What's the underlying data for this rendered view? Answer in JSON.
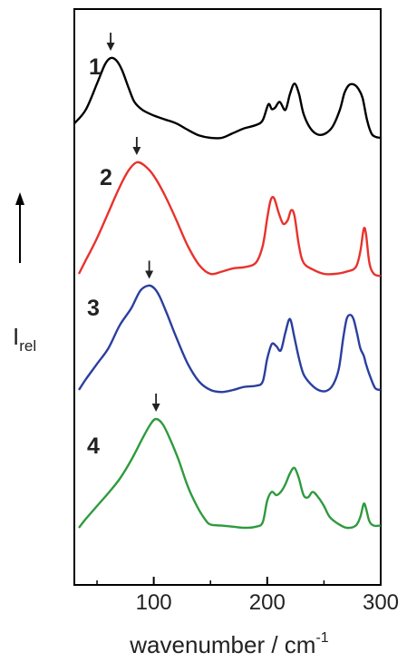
{
  "chart_data": {
    "type": "line",
    "title": "",
    "xlabel": "wavenumber / cm",
    "xlabel_superscript": "-1",
    "ylabel": "I",
    "ylabel_subscript": "rel",
    "xlim": [
      30,
      300
    ],
    "x_ticks": [
      100,
      200,
      300
    ],
    "x_tick_labels": [
      "100",
      "200",
      "300"
    ],
    "y_ticks": [],
    "grid": false,
    "legend": "none",
    "series": [
      {
        "name": "1",
        "color": "#000000",
        "peak_marker_x": 62,
        "x": [
          30,
          40,
          50,
          57,
          62,
          67,
          72,
          78,
          83,
          90,
          100,
          110,
          120,
          130,
          140,
          150,
          160,
          170,
          180,
          190,
          196,
          201,
          204,
          207,
          211,
          216,
          220,
          224,
          228,
          232,
          238,
          245,
          252,
          258,
          264,
          268,
          272,
          276,
          280,
          284,
          288,
          292,
          296,
          300
        ],
        "values": [
          0.18,
          0.35,
          0.68,
          0.92,
          1.0,
          0.97,
          0.85,
          0.62,
          0.45,
          0.35,
          0.28,
          0.23,
          0.18,
          0.1,
          0.03,
          0.0,
          0.0,
          0.06,
          0.12,
          0.16,
          0.22,
          0.42,
          0.36,
          0.38,
          0.45,
          0.35,
          0.55,
          0.68,
          0.55,
          0.3,
          0.12,
          0.04,
          0.06,
          0.15,
          0.35,
          0.56,
          0.66,
          0.67,
          0.62,
          0.5,
          0.22,
          0.05,
          0.01,
          0.0
        ]
      },
      {
        "name": "2",
        "color": "#e8322c",
        "peak_marker_x": 85,
        "x": [
          34,
          40,
          50,
          60,
          70,
          78,
          85,
          92,
          100,
          110,
          120,
          130,
          140,
          150,
          160,
          170,
          180,
          190,
          196,
          200,
          203,
          206,
          210,
          214,
          218,
          221,
          224,
          228,
          232,
          240,
          250,
          260,
          270,
          278,
          282,
          285,
          287,
          290,
          294,
          300
        ],
        "values": [
          0.0,
          0.12,
          0.32,
          0.55,
          0.78,
          0.93,
          1.0,
          0.97,
          0.88,
          0.7,
          0.48,
          0.25,
          0.08,
          0.0,
          0.02,
          0.05,
          0.06,
          0.1,
          0.25,
          0.5,
          0.66,
          0.68,
          0.55,
          0.45,
          0.48,
          0.57,
          0.52,
          0.25,
          0.1,
          0.04,
          0.0,
          0.0,
          0.02,
          0.06,
          0.2,
          0.4,
          0.36,
          0.1,
          0.0,
          -0.02
        ]
      },
      {
        "name": "3",
        "color": "#2a3f9e",
        "peak_marker_x": 96,
        "x": [
          34,
          40,
          50,
          60,
          70,
          80,
          88,
          95,
          100,
          105,
          112,
          120,
          130,
          140,
          150,
          160,
          170,
          180,
          190,
          196,
          200,
          204,
          208,
          212,
          216,
          220,
          224,
          228,
          232,
          238,
          245,
          252,
          258,
          263,
          267,
          270,
          273,
          276,
          279,
          282,
          285,
          287,
          290,
          295,
          300
        ],
        "values": [
          0.0,
          0.1,
          0.25,
          0.4,
          0.62,
          0.78,
          0.95,
          1.0,
          0.98,
          0.9,
          0.72,
          0.5,
          0.25,
          0.08,
          0.0,
          -0.02,
          0.0,
          0.03,
          0.04,
          0.08,
          0.3,
          0.44,
          0.42,
          0.38,
          0.55,
          0.68,
          0.5,
          0.3,
          0.15,
          0.06,
          0.0,
          -0.01,
          0.05,
          0.2,
          0.5,
          0.68,
          0.72,
          0.68,
          0.55,
          0.4,
          0.33,
          0.25,
          0.15,
          0.02,
          0.0
        ]
      },
      {
        "name": "4",
        "color": "#2f9a3e",
        "peak_marker_x": 102,
        "x": [
          34,
          40,
          50,
          60,
          70,
          80,
          90,
          97,
          102,
          108,
          115,
          122,
          130,
          138,
          145,
          150,
          160,
          170,
          180,
          190,
          196,
          200,
          204,
          208,
          212,
          216,
          220,
          224,
          228,
          232,
          236,
          240,
          245,
          250,
          255,
          262,
          270,
          278,
          282,
          285,
          287,
          290,
          294,
          300
        ],
        "values": [
          0.0,
          0.08,
          0.2,
          0.32,
          0.45,
          0.62,
          0.82,
          0.95,
          1.0,
          0.95,
          0.8,
          0.62,
          0.38,
          0.2,
          0.08,
          0.03,
          0.02,
          0.01,
          0.0,
          0.01,
          0.05,
          0.25,
          0.33,
          0.3,
          0.33,
          0.4,
          0.5,
          0.55,
          0.45,
          0.3,
          0.28,
          0.33,
          0.28,
          0.2,
          0.1,
          0.04,
          0.0,
          0.02,
          0.1,
          0.22,
          0.18,
          0.06,
          0.02,
          0.02
        ]
      }
    ]
  }
}
